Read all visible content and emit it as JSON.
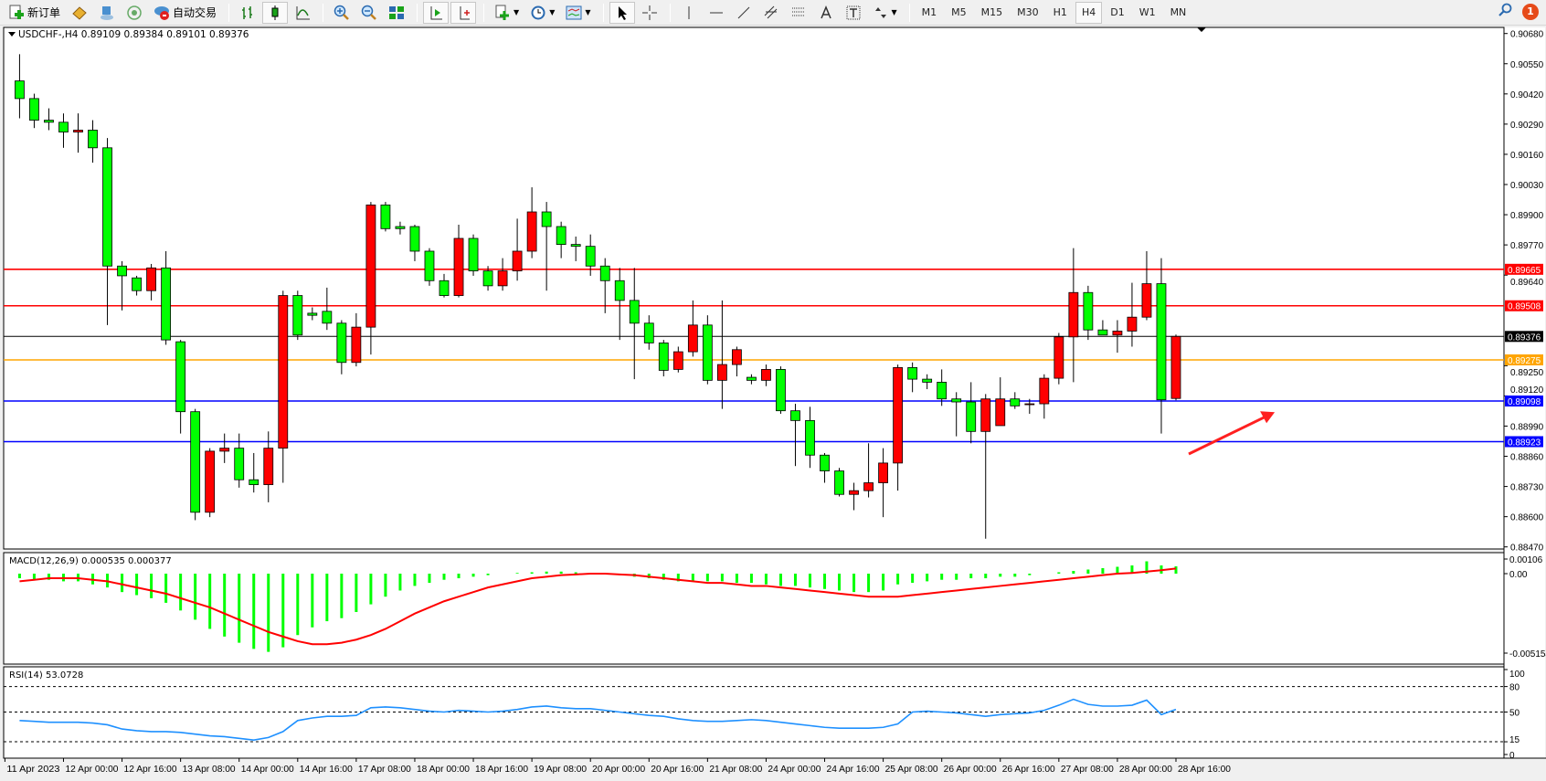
{
  "toolbar": {
    "new_order": "新订单",
    "auto_trading": "自动交易",
    "timeframes": [
      "M1",
      "M5",
      "M15",
      "M30",
      "H1",
      "H4",
      "D1",
      "W1",
      "MN"
    ],
    "active_timeframe": "H4",
    "notification_count": "1",
    "icons": [
      "new-order-icon",
      "market-watch-icon",
      "data-window-icon",
      "navigator-signal-icon",
      "auto-trading-icon",
      "bar-chart-icon",
      "candlestick-icon",
      "line-chart-icon",
      "zoom-in-icon",
      "zoom-out-icon",
      "tile-windows-icon",
      "auto-scroll-icon",
      "chart-shift-icon",
      "templates-icon",
      "periods-clock-icon",
      "indicators-icon",
      "cursor-icon",
      "crosshair-icon",
      "vertical-line-icon",
      "horizontal-line-icon",
      "trendline-icon",
      "equidistant-channel-icon",
      "fibonacci-icon",
      "text-icon",
      "text-label-icon",
      "arrows-icon",
      "search-icon",
      "notification-icon"
    ]
  },
  "chart_data": {
    "type": "candlestick",
    "title": "USDCHF-,H4  0.89109 0.89384 0.89101 0.89376",
    "symbol": "USDCHF-",
    "timeframe": "H4",
    "ylim": [
      0.8847,
      0.9068
    ],
    "colors": {
      "bull": "#ff0000",
      "bear": "#00ff00",
      "wick": "#000000"
    },
    "price_ticks": [
      "0.90680",
      "0.90550",
      "0.90420",
      "0.90290",
      "0.90160",
      "0.90030",
      "0.89900",
      "0.89770",
      "0.89640",
      "0.89250",
      "0.89120",
      "0.88990",
      "0.88860",
      "0.88730",
      "0.88600",
      "0.88470"
    ],
    "horizontal_lines": [
      {
        "price": 0.89665,
        "label": "0.89665",
        "color": "#ff0000"
      },
      {
        "price": 0.89508,
        "label": "0.89508",
        "color": "#ff0000"
      },
      {
        "price": 0.89376,
        "label": "0.89376",
        "color": "#000000"
      },
      {
        "price": 0.89275,
        "label": "0.89275",
        "color": "#ffa500"
      },
      {
        "price": 0.89098,
        "label": "0.89098",
        "color": "#0000ff"
      },
      {
        "price": 0.88923,
        "label": "0.88923",
        "color": "#0000ff"
      }
    ],
    "annotation_arrow": {
      "color": "#ff2020",
      "from": {
        "bar": 80,
        "price": 0.8887
      },
      "to": {
        "bar": 86,
        "price": 0.8905
      }
    },
    "ohlc": [
      [
        0.90476,
        0.90591,
        0.90315,
        0.904
      ],
      [
        0.904,
        0.90421,
        0.90273,
        0.90307
      ],
      [
        0.90307,
        0.90358,
        0.90264,
        0.90298
      ],
      [
        0.90298,
        0.90336,
        0.90188,
        0.90256
      ],
      [
        0.90256,
        0.90336,
        0.90167,
        0.90264
      ],
      [
        0.90264,
        0.90307,
        0.90124,
        0.90188
      ],
      [
        0.90188,
        0.9023,
        0.89425,
        0.89679
      ],
      [
        0.89679,
        0.897,
        0.89488,
        0.89637
      ],
      [
        0.89628,
        0.89637,
        0.89552,
        0.89573
      ],
      [
        0.89573,
        0.89688,
        0.89531,
        0.89671
      ],
      [
        0.89671,
        0.89743,
        0.8934,
        0.89361
      ],
      [
        0.89353,
        0.89361,
        0.88958,
        0.89052
      ],
      [
        0.89052,
        0.89064,
        0.88585,
        0.88619
      ],
      [
        0.88619,
        0.88895,
        0.88598,
        0.88882
      ],
      [
        0.88882,
        0.88958,
        0.88831,
        0.88895
      ],
      [
        0.88895,
        0.88958,
        0.88725,
        0.88759
      ],
      [
        0.88759,
        0.88874,
        0.88704,
        0.88738
      ],
      [
        0.88738,
        0.88967,
        0.88662,
        0.88895
      ],
      [
        0.88895,
        0.89573,
        0.88746,
        0.89552
      ],
      [
        0.89552,
        0.89573,
        0.89361,
        0.89382
      ],
      [
        0.89476,
        0.89501,
        0.89446,
        0.89467
      ],
      [
        0.89484,
        0.89586,
        0.89404,
        0.89433
      ],
      [
        0.89433,
        0.89446,
        0.89213,
        0.89264
      ],
      [
        0.89264,
        0.89476,
        0.89247,
        0.89416
      ],
      [
        0.89416,
        0.89955,
        0.89298,
        0.89942
      ],
      [
        0.89942,
        0.89955,
        0.89828,
        0.8984
      ],
      [
        0.89849,
        0.8987,
        0.89815,
        0.8984
      ],
      [
        0.89849,
        0.89857,
        0.897,
        0.89743
      ],
      [
        0.89743,
        0.89756,
        0.89594,
        0.89616
      ],
      [
        0.89616,
        0.89645,
        0.89544,
        0.89552
      ],
      [
        0.89552,
        0.89857,
        0.89544,
        0.89798
      ],
      [
        0.89798,
        0.89815,
        0.89637,
        0.89658
      ],
      [
        0.89658,
        0.89679,
        0.89573,
        0.89594
      ],
      [
        0.89594,
        0.89713,
        0.89573,
        0.89658
      ],
      [
        0.89658,
        0.89883,
        0.89616,
        0.89743
      ],
      [
        0.89743,
        0.90018,
        0.89713,
        0.89912
      ],
      [
        0.89912,
        0.89955,
        0.89573,
        0.89849
      ],
      [
        0.89849,
        0.8987,
        0.89713,
        0.89772
      ],
      [
        0.89772,
        0.89806,
        0.897,
        0.89764
      ],
      [
        0.89764,
        0.89815,
        0.89637,
        0.89679
      ],
      [
        0.89679,
        0.89713,
        0.89476,
        0.89616
      ],
      [
        0.89616,
        0.89671,
        0.89361,
        0.89531
      ],
      [
        0.89531,
        0.89671,
        0.89192,
        0.89433
      ],
      [
        0.89433,
        0.89467,
        0.89319,
        0.89348
      ],
      [
        0.89348,
        0.89361,
        0.89204,
        0.8923
      ],
      [
        0.89234,
        0.89332,
        0.89221,
        0.8931
      ],
      [
        0.8931,
        0.89531,
        0.89289,
        0.89425
      ],
      [
        0.89425,
        0.89467,
        0.8917,
        0.89187
      ],
      [
        0.89187,
        0.89531,
        0.89064,
        0.89255
      ],
      [
        0.89255,
        0.89332,
        0.89204,
        0.89319
      ],
      [
        0.892,
        0.89213,
        0.8917,
        0.89187
      ],
      [
        0.89187,
        0.89255,
        0.89162,
        0.89234
      ],
      [
        0.89234,
        0.89247,
        0.89043,
        0.89056
      ],
      [
        0.89056,
        0.89086,
        0.88818,
        0.89014
      ],
      [
        0.89014,
        0.89073,
        0.8881,
        0.88865
      ],
      [
        0.88865,
        0.88874,
        0.88746,
        0.88797
      ],
      [
        0.88797,
        0.8881,
        0.88687,
        0.88696
      ],
      [
        0.88696,
        0.88746,
        0.88628,
        0.88712
      ],
      [
        0.88712,
        0.88916,
        0.88683,
        0.88746
      ],
      [
        0.88746,
        0.88895,
        0.88598,
        0.88831
      ],
      [
        0.88831,
        0.89255,
        0.88712,
        0.89242
      ],
      [
        0.89242,
        0.89264,
        0.89136,
        0.89192
      ],
      [
        0.89192,
        0.89213,
        0.89149,
        0.89179
      ],
      [
        0.89179,
        0.89234,
        0.89077,
        0.89107
      ],
      [
        0.89107,
        0.89136,
        0.88946,
        0.89094
      ],
      [
        0.89094,
        0.89179,
        0.88916,
        0.88967
      ],
      [
        0.88967,
        0.89128,
        0.88505,
        0.89107
      ],
      [
        0.88992,
        0.892,
        0.88992,
        0.89107
      ],
      [
        0.89107,
        0.89136,
        0.89064,
        0.89077
      ],
      [
        0.89086,
        0.89107,
        0.89043,
        0.89086
      ],
      [
        0.89086,
        0.89213,
        0.89022,
        0.89196
      ],
      [
        0.89196,
        0.89391,
        0.8917,
        0.89374
      ],
      [
        0.89374,
        0.89756,
        0.89179,
        0.89565
      ],
      [
        0.89565,
        0.89594,
        0.89361,
        0.89404
      ],
      [
        0.89404,
        0.89446,
        0.89382,
        0.89382
      ],
      [
        0.89382,
        0.89446,
        0.89306,
        0.89399
      ],
      [
        0.89399,
        0.89607,
        0.89332,
        0.89459
      ],
      [
        0.89459,
        0.89743,
        0.89446,
        0.89603
      ],
      [
        0.89603,
        0.89713,
        0.88958,
        0.89103
      ],
      [
        0.89109,
        0.89384,
        0.89101,
        0.89376
      ]
    ],
    "time_labels": [
      "11 Apr 2023",
      "12 Apr 00:00",
      "12 Apr 16:00",
      "13 Apr 08:00",
      "14 Apr 00:00",
      "14 Apr 16:00",
      "17 Apr 08:00",
      "18 Apr 00:00",
      "18 Apr 16:00",
      "19 Apr 08:00",
      "20 Apr 00:00",
      "20 Apr 16:00",
      "21 Apr 08:00",
      "24 Apr 00:00",
      "24 Apr 16:00",
      "25 Apr 08:00",
      "26 Apr 00:00",
      "26 Apr 16:00",
      "27 Apr 08:00",
      "28 Apr 00:00",
      "28 Apr 16:00"
    ],
    "macd": {
      "label": "MACD(12,26,9) 0.000535 0.000377",
      "ticks": [
        "0.00106",
        "0.00",
        "-0.005154"
      ],
      "ylim": [
        -0.005154,
        0.00106
      ],
      "colors": {
        "histogram": "#00ff00",
        "signal": "#ff0000"
      },
      "main": [
        -0.0003,
        -0.0004,
        -0.0004,
        -0.0005,
        -0.0005,
        -0.0007,
        -0.0009,
        -0.0012,
        -0.0014,
        -0.0016,
        -0.0019,
        -0.0024,
        -0.003,
        -0.0036,
        -0.0041,
        -0.0045,
        -0.0049,
        -0.0051,
        -0.0048,
        -0.004,
        -0.0035,
        -0.0031,
        -0.0029,
        -0.0025,
        -0.002,
        -0.0015,
        -0.0011,
        -0.0008,
        -0.0006,
        -0.0004,
        -0.0003,
        -0.0002,
        -0.0001,
        0,
        5e-05,
        0.0001,
        0.00015,
        0.00015,
        0.0001,
        5e-05,
        0,
        -0.0001,
        -0.0002,
        -0.0003,
        -0.0004,
        -0.0005,
        -0.0005,
        -0.0005,
        -0.0005,
        -0.0006,
        -0.0006,
        -0.0007,
        -0.0008,
        -0.0008,
        -0.0009,
        -0.001,
        -0.0011,
        -0.0012,
        -0.0012,
        -0.0011,
        -0.0007,
        -0.0006,
        -0.0005,
        -0.0004,
        -0.0004,
        -0.0003,
        -0.0003,
        -0.0002,
        -0.0002,
        -0.0001,
        0,
        0.0001,
        0.0002,
        0.0003,
        0.0004,
        0.0005,
        0.0006,
        0.0009,
        0.0006,
        0.000535
      ],
      "signal": [
        -0.0005,
        -0.0004,
        -0.0003,
        -0.0003,
        -0.0003,
        -0.0004,
        -0.0005,
        -0.0007,
        -0.0009,
        -0.0011,
        -0.0013,
        -0.0016,
        -0.0019,
        -0.0022,
        -0.0026,
        -0.003,
        -0.0034,
        -0.0038,
        -0.0041,
        -0.0044,
        -0.0046,
        -0.0046,
        -0.0045,
        -0.0043,
        -0.004,
        -0.0036,
        -0.0031,
        -0.0026,
        -0.0022,
        -0.0018,
        -0.0015,
        -0.0012,
        -0.0009,
        -0.0007,
        -0.0005,
        -0.0003,
        -0.0002,
        -0.0001,
        -5e-05,
        0,
        0,
        -5e-05,
        -0.0001,
        -0.0002,
        -0.0003,
        -0.0004,
        -0.0005,
        -0.0006,
        -0.0006,
        -0.0007,
        -0.0008,
        -0.0008,
        -0.0009,
        -0.001,
        -0.0011,
        -0.0012,
        -0.0013,
        -0.0014,
        -0.0015,
        -0.0015,
        -0.0015,
        -0.0014,
        -0.0013,
        -0.0012,
        -0.0011,
        -0.001,
        -0.0009,
        -0.0008,
        -0.0007,
        -0.0006,
        -0.0005,
        -0.0004,
        -0.0003,
        -0.0002,
        -0.0001,
        0,
        5e-05,
        0.00015,
        0.00025,
        0.000377
      ]
    },
    "rsi": {
      "label": "RSI(14) 53.0728",
      "ticks": [
        "100",
        "80",
        "50",
        "15",
        "0"
      ],
      "levels": [
        80,
        50,
        15
      ],
      "ylim": [
        0,
        100
      ],
      "color": "#1e90ff",
      "values": [
        40,
        39,
        38,
        38,
        38,
        37,
        35,
        30,
        28,
        27,
        27,
        26,
        24,
        22,
        21,
        19,
        17,
        20,
        27,
        40,
        43,
        45,
        45,
        46,
        55,
        56,
        55,
        53,
        51,
        50,
        52,
        51,
        50,
        51,
        53,
        56,
        57,
        55,
        54,
        54,
        52,
        50,
        48,
        46,
        45,
        42,
        40,
        39,
        39,
        40,
        41,
        40,
        38,
        36,
        34,
        32,
        31,
        31,
        31,
        32,
        36,
        50,
        51,
        50,
        49,
        47,
        45,
        47,
        48,
        49,
        52,
        58,
        65,
        59,
        57,
        57,
        58,
        64,
        47,
        53.0728
      ]
    }
  }
}
